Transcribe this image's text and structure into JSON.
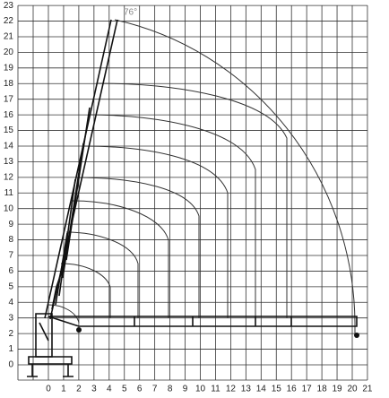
{
  "x_axis": {
    "ticks": [
      0,
      1,
      2,
      3,
      4,
      5,
      6,
      7,
      8,
      9,
      10,
      11,
      12,
      13,
      14,
      15,
      16,
      17,
      18,
      19,
      20,
      21
    ]
  },
  "y_axis": {
    "ticks": [
      0,
      1,
      2,
      3,
      4,
      5,
      6,
      7,
      8,
      9,
      10,
      11,
      12,
      13,
      14,
      15,
      16,
      17,
      18,
      19,
      20,
      21,
      22,
      23
    ]
  },
  "annotation": "76°"
}
